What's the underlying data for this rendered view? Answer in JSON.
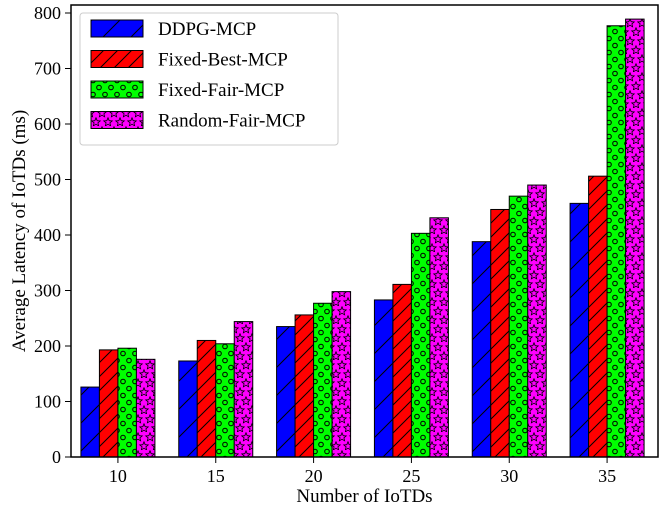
{
  "chart_data": {
    "type": "bar",
    "title": "",
    "xlabel": "Number of IoTDs",
    "ylabel": "Average Latency of IoTDs (ms)",
    "categories": [
      "10",
      "15",
      "20",
      "25",
      "30",
      "35"
    ],
    "ylim": [
      0,
      800
    ],
    "yticks": [
      "0",
      "100",
      "200",
      "300",
      "400",
      "500",
      "600",
      "700",
      "800"
    ],
    "grid": false,
    "legend_position": "top-left",
    "series": [
      {
        "name": "DDPG-MCP",
        "color": "#0000ff",
        "pattern": "diagonal-hatch",
        "values": [
          126,
          173,
          235,
          283,
          388,
          457
        ]
      },
      {
        "name": "Fixed-Best-MCP",
        "color": "#ff0000",
        "pattern": "diagonal-hatch-dense",
        "values": [
          193,
          210,
          256,
          311,
          446,
          506
        ]
      },
      {
        "name": "Fixed-Fair-MCP",
        "color": "#00ff00",
        "pattern": "circles",
        "values": [
          196,
          204,
          277,
          403,
          470,
          777
        ]
      },
      {
        "name": "Random-Fair-MCP",
        "color": "#ff00ff",
        "pattern": "stars",
        "values": [
          176,
          244,
          298,
          431,
          490,
          789
        ]
      }
    ]
  }
}
